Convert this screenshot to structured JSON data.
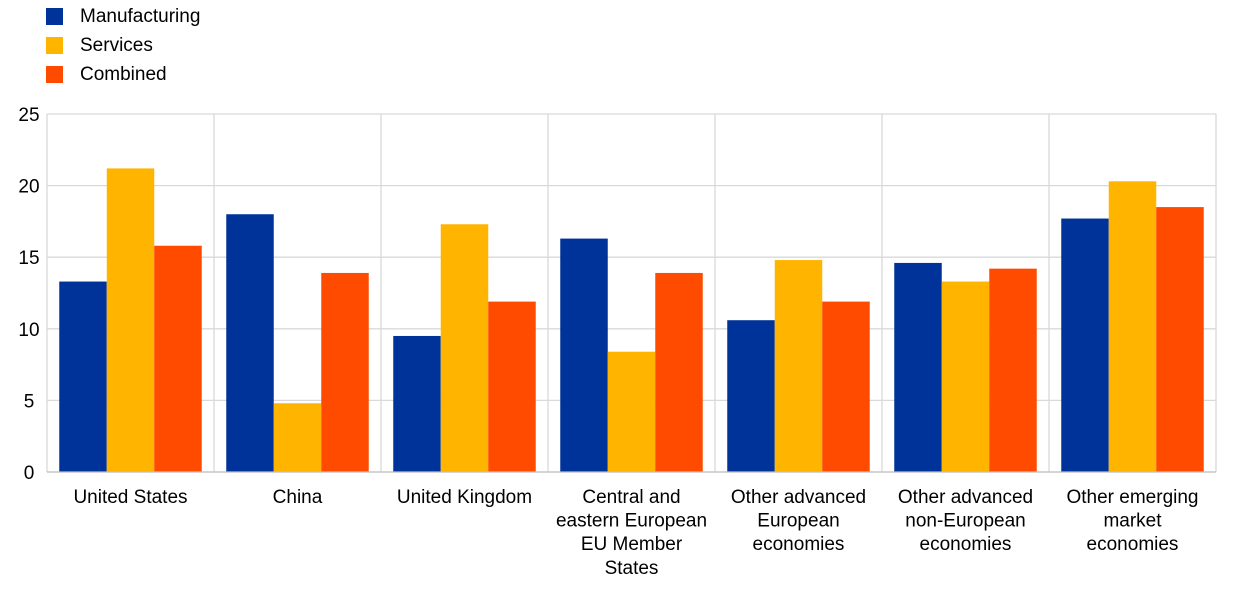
{
  "chart_data": {
    "type": "bar",
    "categories": [
      "United States",
      "China",
      "United Kingdom",
      "Central and eastern European EU Member States",
      "Other advanced European economies",
      "Other advanced non-European economies",
      "Other emerging market economies"
    ],
    "category_lines": [
      [
        "United States"
      ],
      [
        "China"
      ],
      [
        "United Kingdom"
      ],
      [
        "Central and",
        "eastern European",
        "EU Member",
        "States"
      ],
      [
        "Other advanced",
        "European",
        "economies"
      ],
      [
        "Other advanced",
        "non-European",
        "economies"
      ],
      [
        "Other emerging",
        "market",
        "economies"
      ]
    ],
    "series": [
      {
        "name": "Manufacturing",
        "color": "#003399",
        "values": [
          13.3,
          18.0,
          9.5,
          16.3,
          10.6,
          14.6,
          17.7
        ]
      },
      {
        "name": "Services",
        "color": "#FFB400",
        "values": [
          21.2,
          4.8,
          17.3,
          8.4,
          14.8,
          13.3,
          20.3
        ]
      },
      {
        "name": "Combined",
        "color": "#FF4B00",
        "values": [
          15.8,
          13.9,
          11.9,
          13.9,
          11.9,
          14.2,
          18.5
        ]
      }
    ],
    "ylim": [
      0,
      25
    ],
    "yticks": [
      0,
      5,
      10,
      15,
      20,
      25
    ],
    "grid": true,
    "legend": "top-left"
  }
}
